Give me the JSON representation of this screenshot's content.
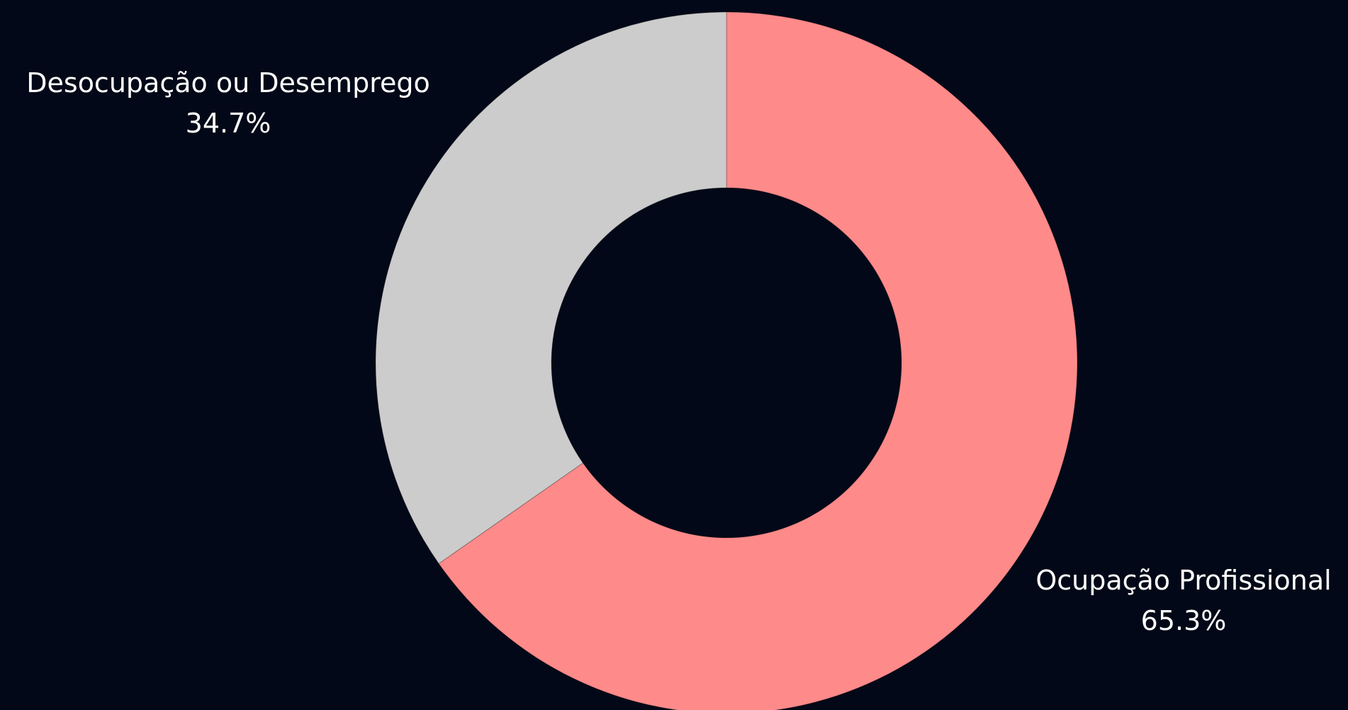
{
  "chart_data": {
    "type": "pie",
    "variant": "donut",
    "categories": [
      "Ocupação Profissional",
      "Desocupação ou Desemprego"
    ],
    "values": [
      65.3,
      34.7
    ],
    "value_labels": [
      "65.3%",
      "34.7%"
    ],
    "colors": [
      "#ff8a8a",
      "#cccccc"
    ],
    "background": "#020817",
    "start_angle": "12 o'clock",
    "direction": "clockwise",
    "legend": "none"
  }
}
